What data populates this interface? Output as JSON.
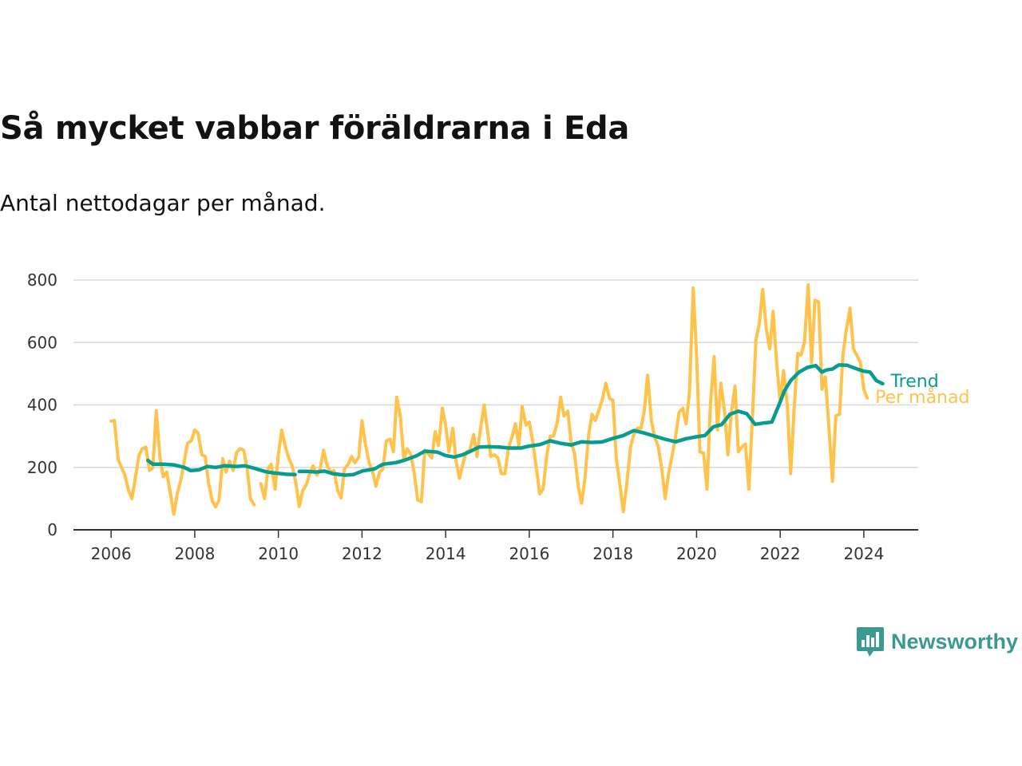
{
  "header": {
    "title": "Så mycket vabbar föräldrarna i Eda",
    "subtitle": "Antal nettodagar per månad."
  },
  "brand": {
    "name": "Newsworthy",
    "icon": "bar-chart-bubble-icon",
    "color": "#3a9a91"
  },
  "colors": {
    "monthly": "#ffc24b",
    "trend": "#069c8f",
    "grid": "#d9d9d9",
    "axis": "#333333"
  },
  "chart_data": {
    "type": "line",
    "title": "Så mycket vabbar föräldrarna i Eda",
    "subtitle": "Antal nettodagar per månad.",
    "xlabel": "",
    "ylabel": "",
    "x_range": [
      2005.1,
      2025.3
    ],
    "ylim": [
      0,
      800
    ],
    "y_ticks": [
      0,
      200,
      400,
      600,
      800
    ],
    "x_ticks": [
      2006,
      2008,
      2010,
      2012,
      2014,
      2016,
      2018,
      2020,
      2022,
      2024
    ],
    "grid": true,
    "series": [
      {
        "name": "Trend",
        "color": "#069c8f",
        "points": [
          [
            2006.88,
            222
          ],
          [
            2007.0,
            210
          ],
          [
            2007.25,
            210
          ],
          [
            2007.5,
            208
          ],
          [
            2007.75,
            200
          ],
          [
            2007.9,
            190
          ],
          [
            2008.1,
            192
          ],
          [
            2008.3,
            203
          ],
          [
            2008.5,
            200
          ],
          [
            2008.7,
            205
          ],
          [
            2009.0,
            203
          ],
          [
            2009.2,
            205
          ],
          [
            2009.4,
            198
          ],
          [
            2009.7,
            186
          ],
          [
            2009.9,
            182
          ],
          [
            2010.2,
            178
          ],
          [
            2010.4,
            177
          ],
          null,
          [
            2010.5,
            187
          ],
          [
            2010.7,
            187
          ],
          [
            2010.9,
            185
          ],
          [
            2011.1,
            188
          ],
          [
            2011.3,
            180
          ],
          [
            2011.6,
            175
          ],
          [
            2011.8,
            177
          ],
          [
            2012.0,
            188
          ],
          [
            2012.3,
            195
          ],
          [
            2012.5,
            210
          ],
          [
            2012.8,
            215
          ],
          [
            2013.0,
            222
          ],
          [
            2013.3,
            237
          ],
          [
            2013.5,
            252
          ],
          [
            2013.8,
            249
          ],
          [
            2014.0,
            238
          ],
          [
            2014.2,
            233
          ],
          [
            2014.4,
            240
          ],
          [
            2014.6,
            252
          ],
          [
            2014.8,
            265
          ],
          [
            2015.0,
            266
          ],
          [
            2015.3,
            265
          ],
          [
            2015.5,
            262
          ],
          [
            2015.8,
            262
          ],
          [
            2016.0,
            268
          ],
          [
            2016.25,
            273
          ],
          [
            2016.5,
            285
          ],
          [
            2016.75,
            277
          ],
          [
            2017.0,
            272
          ],
          [
            2017.25,
            282
          ],
          [
            2017.5,
            280
          ],
          [
            2017.75,
            282
          ],
          [
            2018.0,
            293
          ],
          [
            2018.25,
            302
          ],
          [
            2018.5,
            318
          ],
          [
            2018.75,
            310
          ],
          [
            2019.0,
            300
          ],
          [
            2019.25,
            290
          ],
          [
            2019.5,
            282
          ],
          [
            2019.75,
            292
          ],
          [
            2020.0,
            298
          ],
          [
            2020.2,
            302
          ],
          [
            2020.4,
            330
          ],
          [
            2020.6,
            337
          ],
          [
            2020.8,
            370
          ],
          [
            2021.0,
            380
          ],
          [
            2021.2,
            372
          ],
          [
            2021.4,
            338
          ],
          [
            2021.6,
            342
          ],
          [
            2021.8,
            345
          ],
          [
            2022.0,
            410
          ],
          [
            2022.1,
            445
          ],
          [
            2022.25,
            478
          ],
          [
            2022.45,
            505
          ],
          [
            2022.65,
            520
          ],
          [
            2022.85,
            526
          ],
          [
            2023.0,
            505
          ],
          [
            2023.1,
            512
          ],
          [
            2023.25,
            515
          ],
          [
            2023.4,
            528
          ],
          [
            2023.6,
            527
          ],
          [
            2023.8,
            517
          ],
          [
            2024.0,
            508
          ],
          [
            2024.15,
            505
          ],
          [
            2024.3,
            478
          ],
          [
            2024.45,
            468
          ]
        ]
      },
      {
        "name": "Per månad",
        "color": "#ffc24b",
        "points": [
          [
            2006.0,
            348
          ],
          [
            2006.08,
            350
          ],
          [
            2006.17,
            225
          ],
          [
            2006.33,
            175
          ],
          [
            2006.42,
            125
          ],
          [
            2006.5,
            100
          ],
          [
            2006.67,
            240
          ],
          [
            2006.75,
            260
          ],
          [
            2006.83,
            265
          ],
          [
            2006.92,
            190
          ],
          [
            2007.0,
            200
          ],
          [
            2007.08,
            382
          ],
          [
            2007.17,
            230
          ],
          [
            2007.25,
            170
          ],
          [
            2007.33,
            185
          ],
          [
            2007.42,
            115
          ],
          [
            2007.5,
            50
          ],
          [
            2007.58,
            115
          ],
          [
            2007.67,
            160
          ],
          [
            2007.83,
            278
          ],
          [
            2007.92,
            285
          ],
          [
            2008.0,
            320
          ],
          [
            2008.08,
            310
          ],
          [
            2008.17,
            240
          ],
          [
            2008.25,
            235
          ],
          [
            2008.33,
            150
          ],
          [
            2008.42,
            92
          ],
          [
            2008.5,
            73
          ],
          [
            2008.58,
            95
          ],
          [
            2008.67,
            228
          ],
          [
            2008.75,
            185
          ],
          [
            2008.83,
            220
          ],
          [
            2008.92,
            190
          ],
          [
            2009.0,
            248
          ],
          [
            2009.08,
            260
          ],
          [
            2009.17,
            255
          ],
          [
            2009.25,
            200
          ],
          [
            2009.33,
            100
          ],
          [
            2009.42,
            80
          ],
          null,
          [
            2009.58,
            148
          ],
          [
            2009.67,
            100
          ],
          [
            2009.75,
            195
          ],
          [
            2009.83,
            210
          ],
          [
            2009.92,
            130
          ],
          [
            2010.0,
            240
          ],
          [
            2010.08,
            320
          ],
          [
            2010.17,
            265
          ],
          [
            2010.25,
            230
          ],
          [
            2010.33,
            205
          ],
          [
            2010.42,
            150
          ],
          [
            2010.5,
            75
          ],
          [
            2010.58,
            125
          ],
          [
            2010.67,
            145
          ],
          [
            2010.75,
            180
          ],
          [
            2010.83,
            205
          ],
          [
            2010.92,
            175
          ],
          [
            2011.0,
            195
          ],
          [
            2011.08,
            255
          ],
          [
            2011.17,
            205
          ],
          [
            2011.25,
            185
          ],
          [
            2011.33,
            190
          ],
          [
            2011.42,
            125
          ],
          [
            2011.5,
            102
          ],
          [
            2011.58,
            195
          ],
          [
            2011.67,
            210
          ],
          [
            2011.75,
            235
          ],
          [
            2011.83,
            215
          ],
          [
            2011.92,
            232
          ],
          [
            2012.0,
            350
          ],
          [
            2012.08,
            275
          ],
          [
            2012.17,
            215
          ],
          [
            2012.25,
            190
          ],
          [
            2012.33,
            140
          ],
          [
            2012.42,
            185
          ],
          [
            2012.5,
            195
          ],
          [
            2012.58,
            285
          ],
          [
            2012.67,
            290
          ],
          [
            2012.75,
            250
          ],
          [
            2012.83,
            425
          ],
          [
            2012.92,
            360
          ],
          [
            2013.0,
            225
          ],
          [
            2013.08,
            260
          ],
          [
            2013.17,
            240
          ],
          [
            2013.25,
            180
          ],
          [
            2013.33,
            95
          ],
          [
            2013.42,
            90
          ],
          [
            2013.5,
            255
          ],
          [
            2013.67,
            230
          ],
          [
            2013.75,
            315
          ],
          [
            2013.83,
            270
          ],
          [
            2013.92,
            390
          ],
          [
            2014.0,
            335
          ],
          [
            2014.08,
            250
          ],
          [
            2014.17,
            325
          ],
          [
            2014.25,
            220
          ],
          [
            2014.33,
            165
          ],
          [
            2014.42,
            215
          ],
          [
            2014.5,
            250
          ],
          [
            2014.58,
            255
          ],
          [
            2014.67,
            305
          ],
          [
            2014.75,
            235
          ],
          [
            2014.83,
            320
          ],
          [
            2014.92,
            400
          ],
          [
            2015.0,
            320
          ],
          [
            2015.08,
            235
          ],
          [
            2015.17,
            240
          ],
          [
            2015.25,
            230
          ],
          [
            2015.33,
            180
          ],
          [
            2015.42,
            180
          ],
          [
            2015.5,
            260
          ],
          [
            2015.58,
            295
          ],
          [
            2015.67,
            340
          ],
          [
            2015.75,
            270
          ],
          [
            2015.83,
            395
          ],
          [
            2015.92,
            335
          ],
          [
            2016.0,
            345
          ],
          [
            2016.08,
            285
          ],
          [
            2016.17,
            195
          ],
          [
            2016.25,
            115
          ],
          [
            2016.33,
            130
          ],
          [
            2016.42,
            240
          ],
          [
            2016.5,
            300
          ],
          [
            2016.58,
            300
          ],
          [
            2016.67,
            345
          ],
          [
            2016.75,
            425
          ],
          [
            2016.83,
            365
          ],
          [
            2016.92,
            380
          ],
          [
            2017.0,
            280
          ],
          [
            2017.08,
            245
          ],
          [
            2017.17,
            140
          ],
          [
            2017.25,
            85
          ],
          [
            2017.33,
            165
          ],
          [
            2017.42,
            305
          ],
          [
            2017.5,
            370
          ],
          [
            2017.58,
            350
          ],
          [
            2017.67,
            385
          ],
          [
            2017.75,
            420
          ],
          [
            2017.83,
            470
          ],
          [
            2017.92,
            420
          ],
          [
            2018.0,
            415
          ],
          [
            2018.08,
            230
          ],
          [
            2018.17,
            140
          ],
          [
            2018.25,
            58
          ],
          [
            2018.33,
            145
          ],
          [
            2018.42,
            265
          ],
          [
            2018.5,
            305
          ],
          [
            2018.58,
            325
          ],
          [
            2018.67,
            325
          ],
          [
            2018.75,
            380
          ],
          [
            2018.83,
            495
          ],
          [
            2018.92,
            350
          ],
          [
            2019.0,
            295
          ],
          [
            2019.08,
            270
          ],
          [
            2019.17,
            195
          ],
          [
            2019.25,
            100
          ],
          [
            2019.33,
            180
          ],
          [
            2019.42,
            240
          ],
          [
            2019.5,
            300
          ],
          [
            2019.58,
            375
          ],
          [
            2019.67,
            390
          ],
          [
            2019.75,
            340
          ],
          [
            2019.83,
            440
          ],
          [
            2019.92,
            775
          ],
          [
            2020.0,
            560
          ],
          [
            2020.08,
            250
          ],
          [
            2020.17,
            245
          ],
          [
            2020.25,
            130
          ],
          [
            2020.33,
            400
          ],
          [
            2020.42,
            555
          ],
          [
            2020.5,
            320
          ],
          [
            2020.58,
            470
          ],
          [
            2020.67,
            380
          ],
          [
            2020.75,
            240
          ],
          [
            2020.83,
            375
          ],
          [
            2020.92,
            460
          ],
          [
            2021.0,
            250
          ],
          [
            2021.08,
            265
          ],
          [
            2021.17,
            275
          ],
          [
            2021.25,
            130
          ],
          [
            2021.33,
            345
          ],
          [
            2021.42,
            610
          ],
          [
            2021.5,
            660
          ],
          [
            2021.58,
            770
          ],
          [
            2021.67,
            640
          ],
          [
            2021.75,
            580
          ],
          [
            2021.83,
            700
          ],
          [
            2021.92,
            525
          ],
          [
            2022.0,
            410
          ],
          [
            2022.08,
            510
          ],
          [
            2022.17,
            400
          ],
          [
            2022.25,
            180
          ],
          [
            2022.33,
            380
          ],
          [
            2022.42,
            565
          ],
          [
            2022.5,
            560
          ],
          [
            2022.58,
            600
          ],
          [
            2022.67,
            785
          ],
          [
            2022.75,
            535
          ],
          [
            2022.83,
            735
          ],
          [
            2022.92,
            730
          ],
          [
            2023.0,
            450
          ],
          [
            2023.08,
            490
          ],
          [
            2023.17,
            320
          ],
          [
            2023.25,
            155
          ],
          [
            2023.33,
            365
          ],
          [
            2023.42,
            370
          ],
          [
            2023.5,
            560
          ],
          [
            2023.58,
            640
          ],
          [
            2023.67,
            710
          ],
          [
            2023.75,
            580
          ],
          [
            2023.83,
            560
          ],
          [
            2023.92,
            535
          ],
          [
            2024.0,
            450
          ],
          [
            2024.08,
            422
          ]
        ]
      }
    ]
  }
}
